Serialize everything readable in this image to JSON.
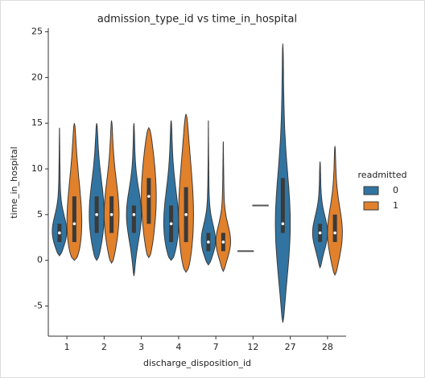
{
  "chart_data": {
    "type": "violin",
    "title": "admission_type_id vs time_in_hospital",
    "x_label": "discharge_disposition_id",
    "y_label": "time_in_hospital",
    "categories": [
      "1",
      "2",
      "3",
      "4",
      "7",
      "12",
      "27",
      "28"
    ],
    "legend_title": "readmitted",
    "legend_position": "right",
    "series": [
      {
        "name": "0",
        "color": "#3274a1",
        "min": [
          0.5,
          0,
          -1.7,
          0,
          -0.5,
          1,
          -6.8,
          -0.8
        ],
        "max": [
          14.5,
          15,
          15,
          15.3,
          15.3,
          1,
          23.7,
          10.8
        ],
        "q1": [
          2,
          3,
          3,
          2,
          1,
          1,
          3,
          2
        ],
        "median": [
          3,
          5,
          5,
          4,
          2,
          1,
          4,
          3
        ],
        "q3": [
          4,
          7,
          6,
          6,
          3,
          1,
          9,
          4
        ]
      },
      {
        "name": "1",
        "color": "#e1812c",
        "min": [
          0,
          -0.3,
          0.3,
          -1.3,
          -1.2,
          6,
          null,
          -1.6
        ],
        "max": [
          15,
          15.3,
          14.5,
          16,
          13,
          6,
          null,
          12.5
        ],
        "q1": [
          2,
          3,
          4,
          2,
          1,
          6,
          null,
          2
        ],
        "median": [
          4,
          5,
          7,
          5,
          2,
          6,
          null,
          3
        ],
        "q3": [
          7,
          7,
          9,
          8,
          3,
          6,
          null,
          5
        ]
      }
    ],
    "ylim": [
      -8.3,
      25.4
    ],
    "yticks": [
      -5,
      0,
      5,
      10,
      15,
      20,
      25
    ]
  }
}
